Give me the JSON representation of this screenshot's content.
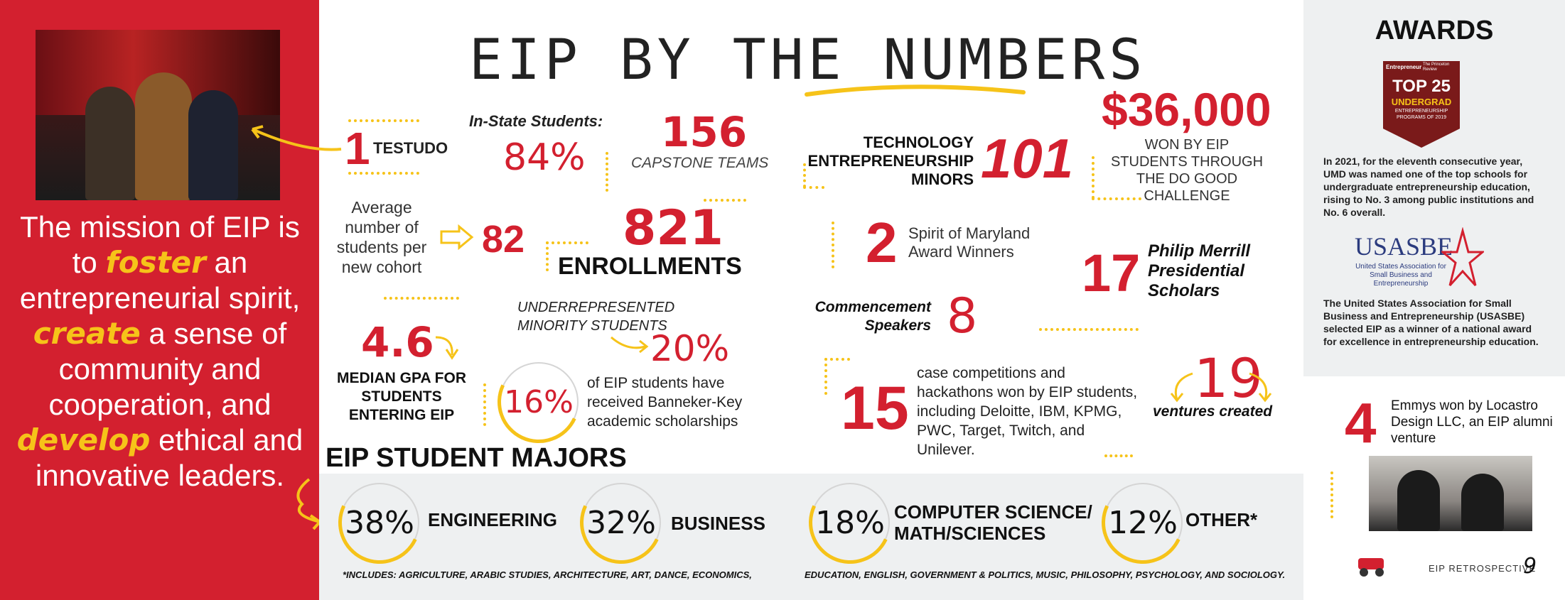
{
  "mission": {
    "p1": "The mission of EIP is to ",
    "foster": "foster",
    "p2": " an entrepreneurial spirit, ",
    "create": "create",
    "p3": " a sense of community and cooperation, and ",
    "develop": "develop",
    "p4": " ethical and innovative leaders."
  },
  "title": "EIP BY THE NUMBERS",
  "stats": {
    "testudo_num": "1",
    "testudo_label": "TESTUDO",
    "instate_label": "In-State Students:",
    "instate_value": "84%",
    "capstone_value": "156",
    "capstone_label": "CAPSTONE TEAMS",
    "cohort_label": "Average number of students per new cohort",
    "cohort_value": "82",
    "enroll_value": "821",
    "enroll_label": "ENROLLMENTS",
    "gpa_value": "4.6",
    "gpa_label": "MEDIAN GPA FOR STUDENTS ENTERING EIP",
    "urm_label": "UNDERREPRESENTED MINORITY STUDENTS",
    "urm_value": "20%",
    "banneker_value": "16%",
    "banneker_label": "of EIP students have received Banneker-Key academic scholarships",
    "tech_label": "TECHNOLOGY ENTREPRENEURSHIP MINORS",
    "tech_value": "101",
    "dogood_value": "$36,000",
    "dogood_label": "WON BY EIP STUDENTS THROUGH THE DO GOOD CHALLENGE",
    "spirit_value": "2",
    "spirit_label": "Spirit of Maryland Award Winners",
    "merrill_value": "17",
    "merrill_label": "Philip Merrill Presidential Scholars",
    "commence_label": "Commencement Speakers",
    "commence_value": "8",
    "case_value": "15",
    "case_label": "case competitions and hackathons won by EIP students, including Deloitte, IBM, KPMG, PWC, Target, Twitch, and Unilever.",
    "ventures_value": "19",
    "ventures_label": "ventures created"
  },
  "majors": {
    "heading": "EIP STUDENT MAJORS",
    "items": [
      {
        "pct": "38%",
        "label": "ENGINEERING"
      },
      {
        "pct": "32%",
        "label": "BUSINESS"
      },
      {
        "pct": "18%",
        "label": "COMPUTER SCIENCE/ MATH/SCIENCES"
      },
      {
        "pct": "12%",
        "label": "OTHER*"
      }
    ],
    "footnote_left": "*INCLUDES: AGRICULTURE, ARABIC STUDIES, ARCHITECTURE, ART, DANCE, ECONOMICS,",
    "footnote_right": "EDUCATION, ENGLISH, GOVERNMENT & POLITICS, MUSIC, PHILOSOPHY, PSYCHOLOGY, AND SOCIOLOGY."
  },
  "awards": {
    "heading": "AWARDS",
    "badge_brand1": "Entrepreneur",
    "badge_brand2": "The Princeton Review",
    "badge_top": "TOP 25",
    "badge_sub": "UNDERGRAD",
    "badge_small": "ENTREPRENEURSHIP PROGRAMS OF 2019",
    "text1": "In 2021, for the eleventh consecutive year, UMD was named one of the top schools for undergraduate entrepreneurship education, rising to No. 3 among public institutions and No. 6 overall.",
    "usasbe_logo": "USASBE",
    "usasbe_sub": "United States Association for Small Business and Entrepreneurship",
    "text2": "The United States Association for Small Business and Entrepreneurship (USASBE) selected EIP as a winner of a national award for excellence in entrepreneurship education.",
    "emmys_value": "4",
    "emmys_label": "Emmys won by Locastro Design LLC, an EIP alumni venture"
  },
  "footer": {
    "label": "EIP RETROSPECTIVE",
    "page": "9"
  },
  "colors": {
    "accent_red": "#d3202f",
    "accent_yellow": "#f6c319",
    "panel_gray": "#eef0f1"
  }
}
